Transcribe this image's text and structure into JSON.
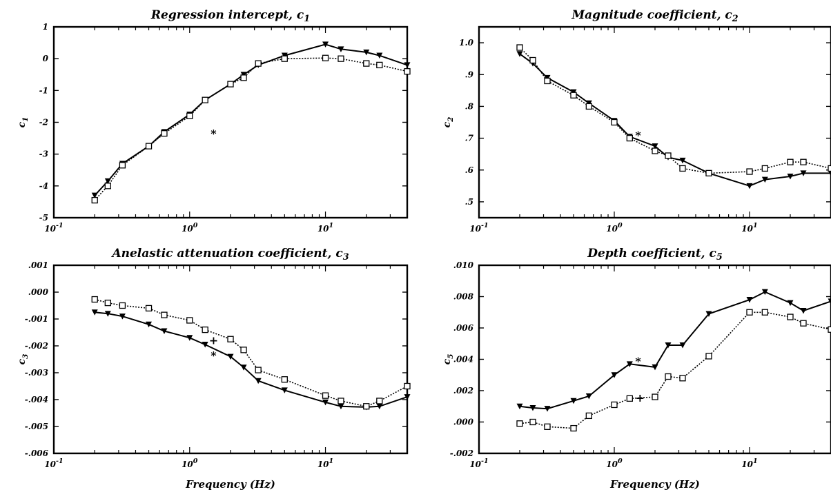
{
  "chart_data": [
    {
      "type": "line",
      "title": "Regression intercept, c",
      "title_sub": "1",
      "ylabel": "c",
      "ylabel_sub": "1",
      "xlabel": "",
      "xscale": "log",
      "xlim": [
        0.1,
        40
      ],
      "ylim": [
        -5,
        1
      ],
      "yticks": [
        1,
        0,
        -1,
        -2,
        -3,
        -4,
        -5
      ],
      "ytick_labels": [
        "1",
        "0",
        "-1",
        "-2",
        "-3",
        "-4",
        "-5"
      ],
      "xtick_labels": [
        {
          "base": "10",
          "exp": "-1"
        },
        {
          "base": "10",
          "exp": "0"
        },
        {
          "base": "10",
          "exp": "1"
        }
      ],
      "grid": false,
      "series": [
        {
          "style": "solid-triangle",
          "x": [
            0.2,
            0.25,
            0.32,
            0.5,
            0.65,
            1,
            1.3,
            2,
            2.5,
            3.2,
            5,
            10,
            13,
            20,
            25,
            40
          ],
          "y": [
            -4.3,
            -3.85,
            -3.3,
            -2.75,
            -2.3,
            -1.75,
            -1.3,
            -0.8,
            -0.5,
            -0.2,
            0.1,
            0.45,
            0.3,
            0.2,
            0.1,
            -0.2
          ]
        },
        {
          "style": "dotted-square",
          "x": [
            0.2,
            0.25,
            0.32,
            0.5,
            0.65,
            1,
            1.3,
            2,
            2.5,
            3.2,
            5,
            10,
            13,
            20,
            25,
            40
          ],
          "y": [
            -4.45,
            -4.0,
            -3.35,
            -2.75,
            -2.35,
            -1.8,
            -1.3,
            -0.8,
            -0.6,
            -0.15,
            0.0,
            0.02,
            0.0,
            -0.15,
            -0.2,
            -0.4
          ]
        }
      ],
      "markers": [
        {
          "x": 1.5,
          "y": -2.35,
          "symbol": "*"
        }
      ]
    },
    {
      "type": "line",
      "title": "Magnitude coefficient, c",
      "title_sub": "2",
      "ylabel": "c",
      "ylabel_sub": "2",
      "xlabel": "",
      "xscale": "log",
      "xlim": [
        0.1,
        40
      ],
      "ylim": [
        0.45,
        1.05
      ],
      "yticks": [
        1.0,
        0.9,
        0.8,
        0.7,
        0.6,
        0.5
      ],
      "ytick_labels": [
        "1.0",
        ".9",
        ".8",
        ".7",
        ".6",
        ".5"
      ],
      "xtick_labels": [
        {
          "base": "10",
          "exp": "-1"
        },
        {
          "base": "10",
          "exp": "0"
        },
        {
          "base": "10",
          "exp": "1"
        }
      ],
      "grid": false,
      "series": [
        {
          "style": "solid-triangle",
          "x": [
            0.2,
            0.25,
            0.32,
            0.5,
            0.65,
            1,
            1.3,
            2,
            2.5,
            3.2,
            5,
            10,
            13,
            20,
            25,
            40
          ],
          "y": [
            0.965,
            0.935,
            0.89,
            0.845,
            0.81,
            0.755,
            0.705,
            0.675,
            0.64,
            0.63,
            0.59,
            0.55,
            0.57,
            0.58,
            0.59,
            0.59
          ]
        },
        {
          "style": "dotted-square",
          "x": [
            0.2,
            0.25,
            0.32,
            0.5,
            0.65,
            1,
            1.3,
            2,
            2.5,
            3.2,
            5,
            10,
            13,
            20,
            25,
            40
          ],
          "y": [
            0.985,
            0.945,
            0.88,
            0.835,
            0.8,
            0.75,
            0.7,
            0.66,
            0.645,
            0.605,
            0.59,
            0.595,
            0.605,
            0.625,
            0.625,
            0.605
          ]
        }
      ],
      "markers": [
        {
          "x": 1.5,
          "y": 0.71,
          "symbol": "*"
        }
      ]
    },
    {
      "type": "line",
      "title": "Anelastic attenuation coefficient, c",
      "title_sub": "3",
      "ylabel": "c",
      "ylabel_sub": "3",
      "xlabel": "Frequency (Hz)",
      "xscale": "log",
      "xlim": [
        0.1,
        40
      ],
      "ylim": [
        -0.006,
        0.001
      ],
      "yticks": [
        0.001,
        0.0,
        -0.001,
        -0.002,
        -0.003,
        -0.004,
        -0.005,
        -0.006
      ],
      "ytick_labels": [
        ".001",
        ".000",
        "-.001",
        "-.002",
        "-.003",
        "-.004",
        "-.005",
        "-.006"
      ],
      "xtick_labels": [
        {
          "base": "10",
          "exp": "-1"
        },
        {
          "base": "10",
          "exp": "0"
        },
        {
          "base": "10",
          "exp": "1"
        }
      ],
      "grid": false,
      "series": [
        {
          "style": "solid-triangle",
          "x": [
            0.2,
            0.25,
            0.32,
            0.5,
            0.65,
            1,
            1.3,
            2,
            2.5,
            3.2,
            5,
            10,
            13,
            20,
            25,
            40
          ],
          "y": [
            -0.00075,
            -0.0008,
            -0.0009,
            -0.0012,
            -0.00145,
            -0.0017,
            -0.00195,
            -0.0024,
            -0.0028,
            -0.0033,
            -0.00365,
            -0.0041,
            -0.00425,
            -0.00428,
            -0.00425,
            -0.0039
          ]
        },
        {
          "style": "dotted-square",
          "x": [
            0.2,
            0.25,
            0.32,
            0.5,
            0.65,
            1,
            1.3,
            2,
            2.5,
            3.2,
            5,
            10,
            13,
            20,
            25,
            40
          ],
          "y": [
            -0.00027,
            -0.0004,
            -0.0005,
            -0.0006,
            -0.00085,
            -0.00105,
            -0.0014,
            -0.00175,
            -0.00215,
            -0.0029,
            -0.00325,
            -0.00385,
            -0.00405,
            -0.00425,
            -0.00405,
            -0.0035
          ]
        }
      ],
      "markers": [
        {
          "x": 1.5,
          "y": -0.00178,
          "symbol": "+"
        },
        {
          "x": 1.5,
          "y": -0.00235,
          "symbol": "*"
        }
      ]
    },
    {
      "type": "line",
      "title": "Depth coefficient, c",
      "title_sub": "5",
      "ylabel": "c",
      "ylabel_sub": "5",
      "xlabel": "Frequency (Hz)",
      "xscale": "log",
      "xlim": [
        0.1,
        40
      ],
      "ylim": [
        -0.002,
        0.01
      ],
      "yticks": [
        0.01,
        0.008,
        0.006,
        0.004,
        0.002,
        0.0,
        -0.002
      ],
      "ytick_labels": [
        ".010",
        ".008",
        ".006",
        ".004",
        ".002",
        ".000",
        "-.002"
      ],
      "xtick_labels": [
        {
          "base": "10",
          "exp": "-1"
        },
        {
          "base": "10",
          "exp": "0"
        },
        {
          "base": "10",
          "exp": "1"
        }
      ],
      "grid": false,
      "series": [
        {
          "style": "solid-triangle",
          "x": [
            0.2,
            0.25,
            0.32,
            0.5,
            0.65,
            1,
            1.3,
            2,
            2.5,
            3.2,
            5,
            10,
            13,
            20,
            25,
            40
          ],
          "y": [
            0.001,
            0.0009,
            0.00085,
            0.00135,
            0.00165,
            0.003,
            0.0037,
            0.0035,
            0.0049,
            0.0049,
            0.0069,
            0.0078,
            0.0083,
            0.0076,
            0.0071,
            0.0077
          ]
        },
        {
          "style": "dotted-square",
          "x": [
            0.2,
            0.25,
            0.32,
            0.5,
            0.65,
            1,
            1.3,
            2,
            2.5,
            3.2,
            5,
            10,
            13,
            20,
            25,
            40
          ],
          "y": [
            -0.0001,
            0.0,
            -0.0003,
            -0.0004,
            0.0004,
            0.0011,
            0.0015,
            0.0016,
            0.0029,
            0.0028,
            0.0042,
            0.007,
            0.007,
            0.0067,
            0.0063,
            0.0059
          ]
        }
      ],
      "markers": [
        {
          "x": 1.5,
          "y": 0.0039,
          "symbol": "*"
        },
        {
          "x": 1.55,
          "y": 0.00155,
          "symbol": "+"
        }
      ]
    }
  ]
}
